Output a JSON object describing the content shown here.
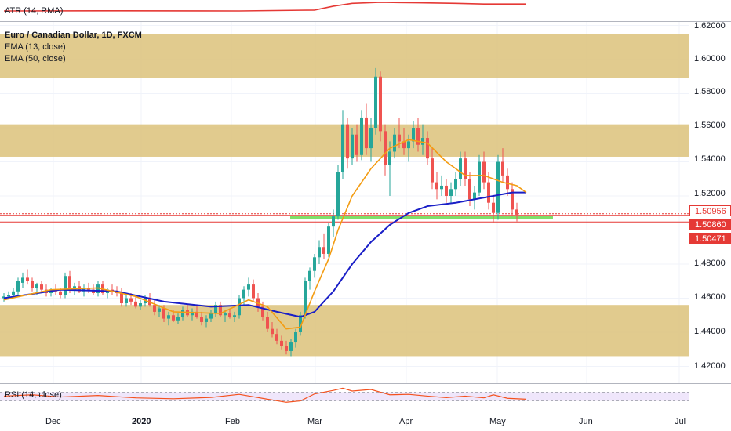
{
  "indicators": {
    "atr_label": "ATR (14, RMA)",
    "rsi_label": "RSI (14, close)"
  },
  "legend": {
    "title": "Euro / Canadian Dollar, 1D, FXCM",
    "ema13_label": "EMA (13, close)",
    "ema50_label": "EMA (50, close)"
  },
  "colors": {
    "up": "#26a69a",
    "down": "#ef5350",
    "ema13": "#f39c12",
    "ema50": "#1a1fc7",
    "zone": "#dcc27a",
    "support": "#7fe06a",
    "atr": "#e53935",
    "rsi": "#f4511e",
    "rsi_band": "#efe6fb"
  },
  "price_axis": {
    "ticks": [
      "1.62000",
      "1.60000",
      "1.58000",
      "1.56000",
      "1.54000",
      "1.52000",
      "1.48000",
      "1.46000",
      "1.44000",
      "1.42000"
    ]
  },
  "price_tags": [
    {
      "text": "1.50956",
      "bg": "#ffffff",
      "fg": "#e53935",
      "border": "#e53935"
    },
    {
      "text": "1.50860",
      "bg": "#e53935",
      "fg": "#ffffff",
      "border": "#e53935"
    },
    {
      "text": "1.50471",
      "bg": "#e53935",
      "fg": "#ffffff",
      "border": "#e53935"
    }
  ],
  "time_axis": {
    "labels": [
      "Dec",
      "2020",
      "Feb",
      "Mar",
      "Apr",
      "May",
      "Jun",
      "Jul"
    ]
  },
  "chart_data": {
    "type": "candlestick",
    "symbol": "Euro / Canadian Dollar, 1D, FXCM",
    "ylim": [
      1.41,
      1.625
    ],
    "zones": [
      {
        "from": 1.589,
        "to": 1.615
      },
      {
        "from": 1.543,
        "to": 1.562
      },
      {
        "from": 1.426,
        "to": 1.456
      }
    ],
    "support_zone": {
      "from": 1.5065,
      "to": 1.5085
    },
    "horizontal_lines": [
      1.50956,
      1.5086,
      1.50471
    ],
    "candles": [
      [
        1.46,
        1.463,
        1.458,
        1.461
      ],
      [
        1.461,
        1.464,
        1.46,
        1.462
      ],
      [
        1.462,
        1.466,
        1.46,
        1.464
      ],
      [
        1.464,
        1.472,
        1.462,
        1.47
      ],
      [
        1.469,
        1.475,
        1.466,
        1.472
      ],
      [
        1.472,
        1.477,
        1.468,
        1.47
      ],
      [
        1.47,
        1.472,
        1.464,
        1.466
      ],
      [
        1.466,
        1.469,
        1.462,
        1.468
      ],
      [
        1.468,
        1.47,
        1.463,
        1.465
      ],
      [
        1.465,
        1.468,
        1.461,
        1.463
      ],
      [
        1.463,
        1.466,
        1.461,
        1.465
      ],
      [
        1.465,
        1.468,
        1.462,
        1.464
      ],
      [
        1.464,
        1.466,
        1.46,
        1.462
      ],
      [
        1.462,
        1.475,
        1.46,
        1.473
      ],
      [
        1.473,
        1.476,
        1.463,
        1.465
      ],
      [
        1.465,
        1.469,
        1.462,
        1.467
      ],
      [
        1.467,
        1.47,
        1.463,
        1.464
      ],
      [
        1.464,
        1.468,
        1.461,
        1.466
      ],
      [
        1.466,
        1.469,
        1.463,
        1.465
      ],
      [
        1.465,
        1.468,
        1.462,
        1.463
      ],
      [
        1.463,
        1.47,
        1.461,
        1.468
      ],
      [
        1.468,
        1.47,
        1.462,
        1.463
      ],
      [
        1.463,
        1.466,
        1.46,
        1.465
      ],
      [
        1.465,
        1.468,
        1.462,
        1.464
      ],
      [
        1.464,
        1.467,
        1.461,
        1.463
      ],
      [
        1.463,
        1.466,
        1.455,
        1.457
      ],
      [
        1.457,
        1.462,
        1.455,
        1.46
      ],
      [
        1.46,
        1.463,
        1.456,
        1.458
      ],
      [
        1.458,
        1.461,
        1.454,
        1.455
      ],
      [
        1.455,
        1.459,
        1.453,
        1.457
      ],
      [
        1.457,
        1.462,
        1.455,
        1.46
      ],
      [
        1.46,
        1.463,
        1.455,
        1.456
      ],
      [
        1.456,
        1.459,
        1.45,
        1.452
      ],
      [
        1.452,
        1.456,
        1.449,
        1.454
      ],
      [
        1.454,
        1.456,
        1.446,
        1.448
      ],
      [
        1.448,
        1.452,
        1.444,
        1.45
      ],
      [
        1.45,
        1.453,
        1.446,
        1.447
      ],
      [
        1.447,
        1.451,
        1.445,
        1.449
      ],
      [
        1.449,
        1.455,
        1.447,
        1.453
      ],
      [
        1.453,
        1.456,
        1.449,
        1.45
      ],
      [
        1.45,
        1.454,
        1.447,
        1.452
      ],
      [
        1.452,
        1.456,
        1.448,
        1.449
      ],
      [
        1.449,
        1.452,
        1.444,
        1.446
      ],
      [
        1.446,
        1.45,
        1.443,
        1.448
      ],
      [
        1.448,
        1.453,
        1.446,
        1.451
      ],
      [
        1.451,
        1.458,
        1.449,
        1.456
      ],
      [
        1.456,
        1.458,
        1.449,
        1.45
      ],
      [
        1.45,
        1.453,
        1.446,
        1.451
      ],
      [
        1.451,
        1.454,
        1.448,
        1.449
      ],
      [
        1.449,
        1.452,
        1.446,
        1.45
      ],
      [
        1.45,
        1.462,
        1.448,
        1.46
      ],
      [
        1.46,
        1.467,
        1.456,
        1.465
      ],
      [
        1.465,
        1.472,
        1.461,
        1.468
      ],
      [
        1.468,
        1.471,
        1.458,
        1.46
      ],
      [
        1.46,
        1.463,
        1.452,
        1.455
      ],
      [
        1.455,
        1.458,
        1.447,
        1.449
      ],
      [
        1.449,
        1.452,
        1.44,
        1.442
      ],
      [
        1.442,
        1.446,
        1.437,
        1.439
      ],
      [
        1.439,
        1.442,
        1.433,
        1.435
      ],
      [
        1.435,
        1.438,
        1.43,
        1.432
      ],
      [
        1.432,
        1.435,
        1.427,
        1.429
      ],
      [
        1.429,
        1.436,
        1.426,
        1.434
      ],
      [
        1.434,
        1.442,
        1.431,
        1.44
      ],
      [
        1.44,
        1.452,
        1.438,
        1.45
      ],
      [
        1.45,
        1.472,
        1.448,
        1.47
      ],
      [
        1.47,
        1.478,
        1.465,
        1.476
      ],
      [
        1.476,
        1.486,
        1.472,
        1.484
      ],
      [
        1.484,
        1.494,
        1.48,
        1.49
      ],
      [
        1.49,
        1.498,
        1.483,
        1.486
      ],
      [
        1.486,
        1.504,
        1.484,
        1.502
      ],
      [
        1.502,
        1.512,
        1.496,
        1.508
      ],
      [
        1.508,
        1.538,
        1.506,
        1.534
      ],
      [
        1.534,
        1.57,
        1.53,
        1.562
      ],
      [
        1.562,
        1.566,
        1.536,
        1.542
      ],
      [
        1.542,
        1.56,
        1.538,
        1.556
      ],
      [
        1.556,
        1.562,
        1.54,
        1.544
      ],
      [
        1.544,
        1.57,
        1.541,
        1.566
      ],
      [
        1.566,
        1.574,
        1.544,
        1.548
      ],
      [
        1.548,
        1.566,
        1.54,
        1.56
      ],
      [
        1.56,
        1.595,
        1.556,
        1.59
      ],
      [
        1.59,
        1.593,
        1.552,
        1.558
      ],
      [
        1.558,
        1.562,
        1.532,
        1.538
      ],
      [
        1.538,
        1.552,
        1.52,
        1.546
      ],
      [
        1.546,
        1.56,
        1.542,
        1.556
      ],
      [
        1.556,
        1.566,
        1.548,
        1.552
      ],
      [
        1.552,
        1.56,
        1.544,
        1.548
      ],
      [
        1.548,
        1.556,
        1.54,
        1.552
      ],
      [
        1.552,
        1.564,
        1.548,
        1.56
      ],
      [
        1.56,
        1.566,
        1.546,
        1.55
      ],
      [
        1.55,
        1.562,
        1.544,
        1.554
      ],
      [
        1.554,
        1.558,
        1.538,
        1.542
      ],
      [
        1.542,
        1.548,
        1.524,
        1.528
      ],
      [
        1.528,
        1.534,
        1.518,
        1.524
      ],
      [
        1.524,
        1.532,
        1.52,
        1.526
      ],
      [
        1.526,
        1.53,
        1.516,
        1.52
      ],
      [
        1.52,
        1.528,
        1.516,
        1.524
      ],
      [
        1.524,
        1.534,
        1.52,
        1.53
      ],
      [
        1.53,
        1.546,
        1.526,
        1.542
      ],
      [
        1.542,
        1.546,
        1.526,
        1.53
      ],
      [
        1.53,
        1.534,
        1.514,
        1.518
      ],
      [
        1.518,
        1.526,
        1.512,
        1.522
      ],
      [
        1.522,
        1.544,
        1.52,
        1.54
      ],
      [
        1.54,
        1.546,
        1.524,
        1.528
      ],
      [
        1.528,
        1.534,
        1.512,
        1.516
      ],
      [
        1.516,
        1.52,
        1.504,
        1.51
      ],
      [
        1.51,
        1.544,
        1.506,
        1.54
      ],
      [
        1.54,
        1.548,
        1.528,
        1.532
      ],
      [
        1.532,
        1.536,
        1.52,
        1.524
      ],
      [
        1.524,
        1.528,
        1.508,
        1.512
      ],
      [
        1.512,
        1.516,
        1.505,
        1.509
      ]
    ],
    "ema13": [
      [
        0,
        1.459
      ],
      [
        10,
        1.465
      ],
      [
        20,
        1.466
      ],
      [
        28,
        1.461
      ],
      [
        36,
        1.452
      ],
      [
        46,
        1.451
      ],
      [
        52,
        1.459
      ],
      [
        56,
        1.455
      ],
      [
        60,
        1.442
      ],
      [
        63,
        1.443
      ],
      [
        66,
        1.464
      ],
      [
        69,
        1.483
      ],
      [
        71,
        1.5
      ],
      [
        74,
        1.52
      ],
      [
        78,
        1.536
      ],
      [
        82,
        1.548
      ],
      [
        86,
        1.553
      ],
      [
        90,
        1.551
      ],
      [
        94,
        1.54
      ],
      [
        98,
        1.532
      ],
      [
        102,
        1.532
      ],
      [
        106,
        1.528
      ],
      [
        109,
        1.526
      ],
      [
        111,
        1.522
      ]
    ],
    "ema50": [
      [
        0,
        1.46
      ],
      [
        12,
        1.465
      ],
      [
        24,
        1.464
      ],
      [
        34,
        1.458
      ],
      [
        44,
        1.455
      ],
      [
        52,
        1.456
      ],
      [
        58,
        1.452
      ],
      [
        63,
        1.449
      ],
      [
        66,
        1.452
      ],
      [
        70,
        1.464
      ],
      [
        74,
        1.48
      ],
      [
        78,
        1.493
      ],
      [
        82,
        1.503
      ],
      [
        86,
        1.51
      ],
      [
        90,
        1.514
      ],
      [
        96,
        1.516
      ],
      [
        100,
        1.518
      ],
      [
        104,
        1.52
      ],
      [
        108,
        1.522
      ],
      [
        111,
        1.522
      ]
    ],
    "atr": [
      [
        0,
        0.0
      ],
      [
        25,
        0.02
      ],
      [
        50,
        0.0
      ],
      [
        66,
        0.1
      ],
      [
        70,
        0.55
      ],
      [
        74,
        0.88
      ],
      [
        80,
        1.0
      ],
      [
        88,
        0.95
      ],
      [
        96,
        0.88
      ],
      [
        102,
        0.8
      ],
      [
        111,
        0.8
      ]
    ],
    "rsi_range": [
      0,
      100
    ],
    "rsi_band": [
      30,
      70
    ],
    "rsi": [
      [
        0,
        52
      ],
      [
        6,
        58
      ],
      [
        12,
        48
      ],
      [
        20,
        55
      ],
      [
        28,
        44
      ],
      [
        36,
        40
      ],
      [
        44,
        46
      ],
      [
        50,
        60
      ],
      [
        56,
        38
      ],
      [
        60,
        24
      ],
      [
        63,
        30
      ],
      [
        66,
        62
      ],
      [
        70,
        78
      ],
      [
        72,
        88
      ],
      [
        74,
        75
      ],
      [
        78,
        82
      ],
      [
        80,
        70
      ],
      [
        82,
        58
      ],
      [
        86,
        60
      ],
      [
        90,
        52
      ],
      [
        94,
        45
      ],
      [
        98,
        52
      ],
      [
        102,
        44
      ],
      [
        104,
        58
      ],
      [
        107,
        42
      ],
      [
        111,
        38
      ]
    ]
  }
}
